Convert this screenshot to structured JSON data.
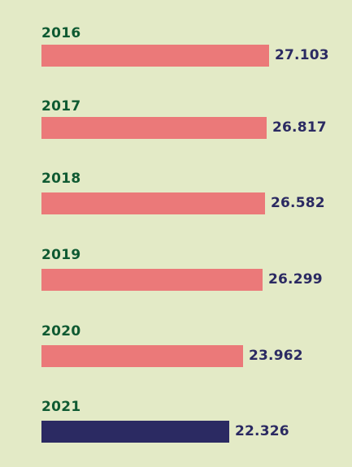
{
  "chart_data": {
    "type": "bar",
    "orientation": "horizontal",
    "categories": [
      "2016",
      "2017",
      "2018",
      "2019",
      "2020",
      "2021"
    ],
    "values": [
      27103,
      26817,
      26582,
      26299,
      23962,
      22326
    ],
    "value_labels": [
      "27.103",
      "26.817",
      "26.582",
      "26.299",
      "23.962",
      "22.326"
    ],
    "highlight_category": "2021",
    "title": "",
    "xlabel": "",
    "ylabel": "",
    "grid": false,
    "legend": "none"
  },
  "colors": {
    "background": "#e3eac6",
    "bar": "#eb7979",
    "bar_highlight": "#2b2a62",
    "year_label": "#0f5a32",
    "value_label": "#2b2a62"
  }
}
